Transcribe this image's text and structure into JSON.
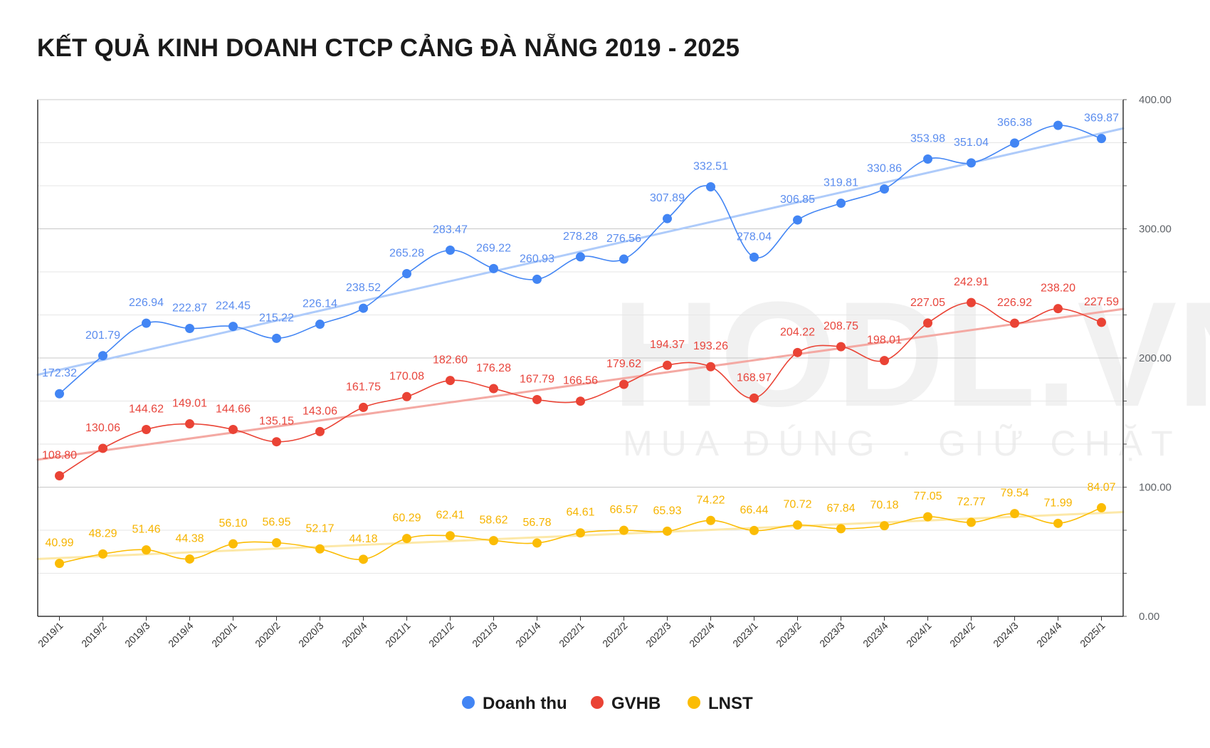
{
  "title": "KẾT QUẢ KINH DOANH CTCP CẢNG ĐÀ NẴNG 2019 - 2025",
  "watermark": {
    "brand": "HODL.VN",
    "slogan": "MUA ĐÚNG . GIỮ CHẶT"
  },
  "chart_data": {
    "type": "line",
    "title": "KẾT QUẢ KINH DOANH CTCP CẢNG ĐÀ NẴNG 2019 - 2025",
    "xlabel": "",
    "ylabel": "",
    "ylim": [
      0,
      400
    ],
    "yticks": [
      "0.00",
      "100.00",
      "200.00",
      "300.00",
      "400.00"
    ],
    "y_axis_side": "right",
    "grid": true,
    "trendlines": true,
    "legend_position": "bottom",
    "categories": [
      "2019/1",
      "2019/2",
      "2019/3",
      "2019/4",
      "2020/1",
      "2020/2",
      "2020/3",
      "2020/4",
      "2021/1",
      "2021/2",
      "2021/3",
      "2021/4",
      "2022/1",
      "2022/2",
      "2022/3",
      "2022/4",
      "2023/1",
      "2023/2",
      "2023/3",
      "2023/4",
      "2024/1",
      "2024/2",
      "2024/3",
      "2024/4",
      "2025/1"
    ],
    "series": [
      {
        "name": "Doanh thu",
        "color": "#4285f4",
        "trend_color": "#aecbfa",
        "label_color": "#5b8def",
        "values": [
          172.32,
          201.79,
          226.94,
          222.87,
          224.45,
          215.22,
          226.14,
          238.52,
          265.28,
          283.47,
          269.22,
          260.93,
          278.28,
          276.56,
          307.89,
          332.51,
          278.04,
          306.85,
          319.81,
          330.86,
          353.98,
          351.04,
          366.38,
          380.1,
          369.87
        ],
        "labels": [
          "172.32",
          "201.79",
          "226.94",
          "222.87",
          "224.45",
          "215.22",
          "226.14",
          "238.52",
          "265.28",
          "283.47",
          "269.22",
          "260.93",
          "278.28",
          "276.56",
          "307.89",
          "332.51",
          "278.04",
          "306.85",
          "319.81",
          "330.86",
          "353.98",
          "351.04",
          "366.38",
          "",
          "369.87"
        ]
      },
      {
        "name": "GVHB",
        "color": "#ea4335",
        "trend_color": "#f4a9a3",
        "label_color": "#e8453c",
        "values": [
          108.8,
          130.06,
          144.62,
          149.01,
          144.66,
          135.15,
          143.06,
          161.75,
          170.08,
          182.6,
          176.28,
          167.79,
          166.56,
          179.62,
          194.37,
          193.26,
          168.97,
          204.22,
          208.75,
          198.01,
          227.05,
          242.91,
          226.92,
          238.2,
          227.59
        ],
        "labels": [
          "108.80",
          "130.06",
          "144.62",
          "149.01",
          "144.66",
          "135.15",
          "143.06",
          "161.75",
          "170.08",
          "182.60",
          "176.28",
          "167.79",
          "166.56",
          "179.62",
          "194.37",
          "193.26",
          "168.97",
          "204.22",
          "208.75",
          "198.01",
          "227.05",
          "242.91",
          "226.92",
          "238.20",
          "227.59"
        ]
      },
      {
        "name": "LNST",
        "color": "#fbbc04",
        "trend_color": "#fce8a8",
        "label_color": "#f6b400",
        "values": [
          40.99,
          48.29,
          51.46,
          44.38,
          56.1,
          56.95,
          52.17,
          44.18,
          60.29,
          62.41,
          58.62,
          56.78,
          64.61,
          66.57,
          65.93,
          74.22,
          66.44,
          70.72,
          67.84,
          70.18,
          77.05,
          72.77,
          79.54,
          71.99,
          84.07
        ],
        "labels": [
          "40.99",
          "48.29",
          "51.46",
          "44.38",
          "56.10",
          "56.95",
          "52.17",
          "44.18",
          "60.29",
          "62.41",
          "58.62",
          "56.78",
          "64.61",
          "66.57",
          "65.93",
          "74.22",
          "66.44",
          "70.72",
          "67.84",
          "70.18",
          "77.05",
          "72.77",
          "79.54",
          "71.99",
          "84.07"
        ]
      }
    ]
  }
}
